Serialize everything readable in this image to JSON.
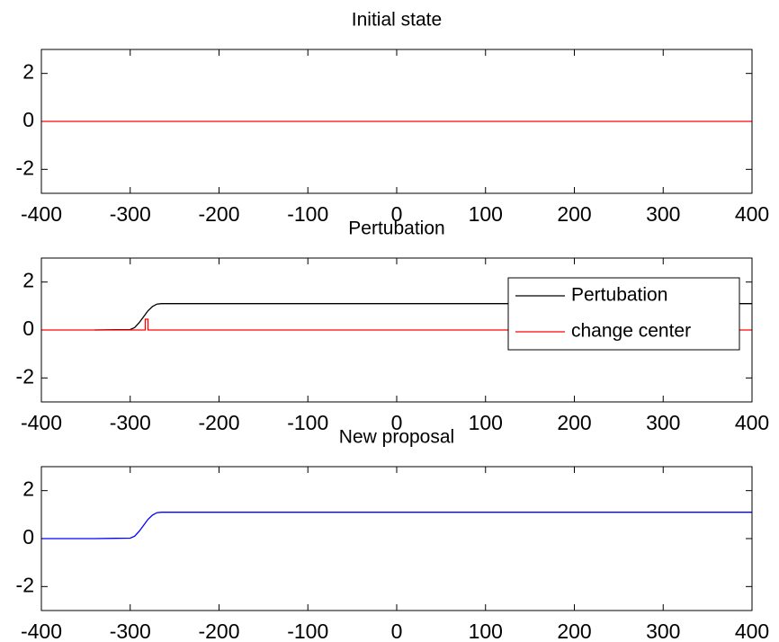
{
  "chart_data": [
    {
      "type": "line",
      "title": "Initial state",
      "xlim": [
        -400,
        400
      ],
      "ylim": [
        -3,
        3
      ],
      "xticks": [
        -400,
        -300,
        -200,
        -100,
        0,
        100,
        200,
        300,
        400
      ],
      "yticks": [
        -2,
        0,
        2
      ],
      "series": [
        {
          "name": null,
          "color": "#ff0000",
          "x": [
            -400,
            400
          ],
          "values": [
            0,
            0
          ]
        }
      ]
    },
    {
      "type": "line",
      "title": "Pertubation",
      "xlim": [
        -400,
        400
      ],
      "ylim": [
        -3,
        3
      ],
      "xticks": [
        -400,
        -300,
        -200,
        -100,
        0,
        100,
        200,
        300,
        400
      ],
      "yticks": [
        -2,
        0,
        2
      ],
      "legend": "northeast",
      "series": [
        {
          "name": "Pertubation",
          "color": "#000000",
          "x": [
            -340,
            -300,
            -295,
            -290,
            -285,
            -280,
            -275,
            -270,
            -265,
            400
          ],
          "values": [
            0,
            0.02,
            0.1,
            0.3,
            0.55,
            0.8,
            0.98,
            1.08,
            1.1,
            1.1
          ]
        },
        {
          "name": "change center",
          "color": "#ff0000",
          "x": [
            -400,
            -283,
            -283,
            -280,
            -280,
            400
          ],
          "values": [
            0,
            0,
            0.45,
            0.45,
            0,
            0
          ]
        }
      ]
    },
    {
      "type": "line",
      "title": "New proposal",
      "xlim": [
        -400,
        400
      ],
      "ylim": [
        -3,
        3
      ],
      "xticks": [
        -400,
        -300,
        -200,
        -100,
        0,
        100,
        200,
        300,
        400
      ],
      "yticks": [
        -2,
        0,
        2
      ],
      "series": [
        {
          "name": null,
          "color": "#0000ff",
          "x": [
            -400,
            -340,
            -300,
            -295,
            -290,
            -285,
            -280,
            -275,
            -270,
            -265,
            400
          ],
          "values": [
            0,
            0,
            0.02,
            0.1,
            0.3,
            0.55,
            0.8,
            0.98,
            1.08,
            1.1,
            1.1
          ]
        }
      ]
    }
  ]
}
